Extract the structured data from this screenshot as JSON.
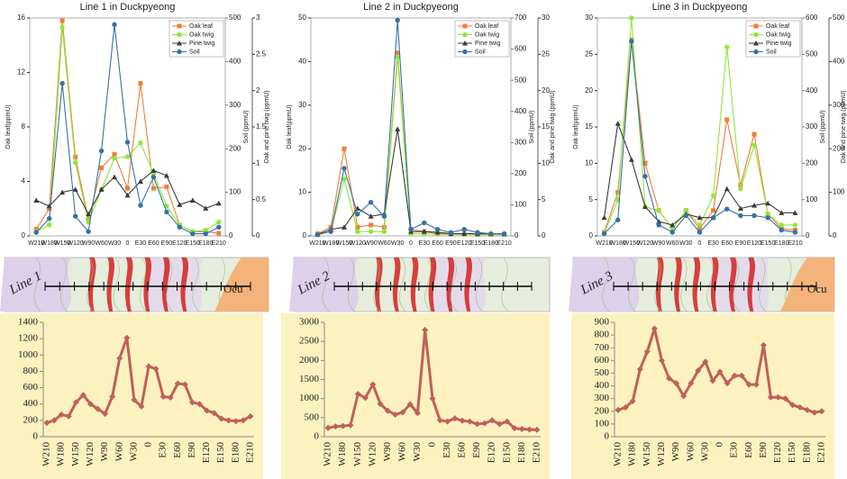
{
  "chart_data": [
    {
      "type": "line",
      "title": "Line 1 in Duckpyeong",
      "categories": [
        "W210",
        "W180",
        "W150",
        "W120",
        "W90",
        "W60",
        "W30",
        "0",
        "E30",
        "E60",
        "E90",
        "E120",
        "E150",
        "E180",
        "E210"
      ],
      "ylabel": "Oak leaf(ppmU)",
      "y2label": "Soil (ppmU)",
      "y3label": "Oak and pine twig (ppmU)",
      "ylim": [
        0,
        16
      ],
      "yticks": [
        0,
        4,
        8,
        12,
        16
      ],
      "y2lim": [
        0,
        500
      ],
      "y2ticks": [
        0,
        100,
        200,
        300,
        400,
        500
      ],
      "y3lim": [
        0,
        3
      ],
      "y3ticks": [
        0,
        0.5,
        1,
        1.5,
        2,
        2.5,
        3
      ],
      "legend": "upper right",
      "series": [
        {
          "name": "Oak leaf",
          "color": "#f07d3c",
          "marker": "square",
          "axis": "y",
          "values": [
            0.5,
            2,
            15.8,
            5.8,
            1.2,
            5,
            6,
            3.5,
            11.2,
            3.5,
            3.6,
            0.8,
            0.3,
            0.3,
            0.2
          ]
        },
        {
          "name": "Oak twig",
          "color": "#8ee83a",
          "marker": "circle",
          "axis": "y3",
          "values": [
            0.06,
            0.15,
            2.87,
            1.01,
            0.19,
            0.64,
            1.07,
            1.09,
            1.28,
            0.86,
            0.41,
            0.15,
            0.06,
            0.08,
            0.19
          ]
        },
        {
          "name": "Pine twig",
          "color": "#3a3a3a",
          "marker": "triangle",
          "axis": "y3",
          "values": [
            0.49,
            0.41,
            0.6,
            0.64,
            0.3,
            0.64,
            0.81,
            0.56,
            0.75,
            0.9,
            0.83,
            0.43,
            0.49,
            0.38,
            0.45
          ]
        },
        {
          "name": "Soil",
          "color": "#3572a8",
          "marker": "circle",
          "axis": "y2",
          "values": [
            8,
            40,
            350,
            45,
            10,
            195,
            485,
            215,
            70,
            135,
            55,
            20,
            5,
            5,
            20
          ]
        }
      ]
    },
    {
      "type": "line",
      "title": "Line 2 in Duckpyeong",
      "categories": [
        "W210",
        "W180",
        "W150",
        "W120",
        "W90",
        "W60",
        "W30",
        "0",
        "E30",
        "E60",
        "E90",
        "E120",
        "E150",
        "E180",
        "E210"
      ],
      "ylabel": "Oak leaf(ppmU)",
      "y2label": "Soil (ppmU)",
      "y3label": "Oak and pine twig (ppmU)",
      "ylim": [
        0,
        50
      ],
      "yticks": [
        0,
        10,
        20,
        30,
        40,
        50
      ],
      "y2lim": [
        0,
        700
      ],
      "y2ticks": [
        0,
        100,
        200,
        300,
        400,
        500,
        600,
        700
      ],
      "y3lim": [
        0,
        30
      ],
      "y3ticks": [
        0,
        5,
        10,
        15,
        20,
        25,
        30
      ],
      "legend": "upper right",
      "series": [
        {
          "name": "Oak leaf",
          "color": "#f07d3c",
          "marker": "square",
          "axis": "y",
          "values": [
            0.5,
            2,
            20,
            2,
            2.5,
            2,
            42,
            1.5,
            1,
            0.5,
            0.5,
            0.5,
            0.3,
            0.3,
            0.3
          ]
        },
        {
          "name": "Oak twig",
          "color": "#8ee83a",
          "marker": "circle",
          "axis": "y3",
          "values": [
            0.2,
            0.6,
            7.8,
            0.6,
            0.6,
            0.6,
            24.6,
            0.3,
            0.3,
            0.2,
            0.2,
            0.2,
            0.2,
            0.2,
            0.2
          ]
        },
        {
          "name": "Pine twig",
          "color": "#3a3a3a",
          "marker": "triangle",
          "axis": "y3",
          "values": [
            0.2,
            0.9,
            1.2,
            3.8,
            2.7,
            3,
            14.7,
            0.6,
            0.6,
            0.5,
            0.3,
            0.3,
            0.3,
            0.3,
            0.3
          ]
        },
        {
          "name": "Soil",
          "color": "#3572a8",
          "marker": "circle",
          "axis": "y2",
          "values": [
            4,
            14,
            217,
            70,
            108,
            63,
            693,
            21,
            42,
            21,
            11,
            21,
            11,
            7,
            7
          ]
        }
      ]
    },
    {
      "type": "line",
      "title": "Line 3 in Duckpyeong",
      "categories": [
        "W210",
        "W180",
        "W150",
        "W120",
        "W90",
        "W60",
        "W30",
        "0",
        "E30",
        "E60",
        "E90",
        "E120",
        "E150",
        "E180",
        "E210"
      ],
      "ylabel": "Oak leaf(ppmU)",
      "y2label": "Soil (ppmU)",
      "y3label": "Oak and pine twig (ppmU)",
      "ylim": [
        0,
        30
      ],
      "yticks": [
        0,
        5,
        10,
        15,
        20,
        25,
        30
      ],
      "y2lim": [
        0,
        600
      ],
      "y2ticks": [
        0,
        100,
        200,
        300,
        400,
        500,
        600
      ],
      "y3lim": [
        0,
        500
      ],
      "y3ticks": [
        0,
        100,
        200,
        300,
        400,
        500
      ],
      "legend": "upper right",
      "series": [
        {
          "name": "Oak leaf",
          "color": "#f07d3c",
          "marker": "square",
          "axis": "y",
          "values": [
            0.5,
            6,
            27,
            10,
            3.5,
            1,
            3.5,
            1,
            3.5,
            16,
            7,
            14,
            3,
            1,
            0.8
          ]
        },
        {
          "name": "Oak twig",
          "color": "#8ee83a",
          "marker": "circle",
          "axis": "y3",
          "values": [
            5,
            83,
            500,
            67,
            58,
            17,
            58,
            25,
            92,
            433,
            108,
            208,
            50,
            25,
            25
          ]
        },
        {
          "name": "Pine twig",
          "color": "#3a3a3a",
          "marker": "triangle",
          "axis": "y3",
          "values": [
            42,
            258,
            175,
            67,
            33,
            25,
            50,
            42,
            42,
            108,
            63,
            70,
            75,
            53,
            53
          ]
        },
        {
          "name": "Soil",
          "color": "#3572a8",
          "marker": "circle",
          "axis": "y2",
          "values": [
            6,
            44,
            536,
            164,
            30,
            10,
            56,
            10,
            50,
            74,
            56,
            56,
            50,
            16,
            10
          ]
        }
      ]
    },
    {
      "type": "line",
      "color": "#c0605a",
      "background": "#fcf2c0",
      "categories": [
        "W210",
        null,
        "W180",
        null,
        "W150",
        null,
        "W120",
        null,
        "W90",
        null,
        "W60",
        null,
        "W30",
        null,
        "0",
        null,
        "E30",
        null,
        "E60",
        null,
        "E90",
        null,
        "E120",
        null,
        "E150",
        null,
        "E180",
        null,
        "E210"
      ],
      "values": [
        170,
        200,
        270,
        250,
        420,
        510,
        400,
        340,
        280,
        490,
        960,
        1210,
        450,
        370,
        860,
        830,
        490,
        480,
        650,
        640,
        420,
        400,
        320,
        290,
        220,
        200,
        190,
        200,
        250
      ],
      "ylim": [
        0,
        1400
      ],
      "yticks": [
        0,
        200,
        400,
        600,
        800,
        1000,
        1200,
        1400
      ]
    },
    {
      "type": "line",
      "color": "#c0605a",
      "background": "#fcf2c0",
      "categories": [
        "W210",
        null,
        "W180",
        null,
        "W150",
        null,
        "W120",
        null,
        "W90",
        null,
        "W60",
        null,
        "W30",
        null,
        "0",
        null,
        "E30",
        null,
        "E60",
        null,
        "E90",
        null,
        "E120",
        null,
        "E150",
        null,
        "E180",
        null,
        "E210"
      ],
      "values": [
        230,
        270,
        280,
        300,
        1120,
        1020,
        1370,
        860,
        680,
        580,
        640,
        850,
        620,
        2800,
        1000,
        430,
        400,
        480,
        420,
        400,
        330,
        350,
        430,
        330,
        400,
        220,
        200,
        190,
        180
      ],
      "ylim": [
        0,
        3000
      ],
      "yticks": [
        0,
        500,
        1000,
        1500,
        2000,
        2500,
        3000
      ]
    },
    {
      "type": "line",
      "color": "#c0605a",
      "background": "#fcf2c0",
      "categories": [
        "W210",
        null,
        "W180",
        null,
        "W150",
        null,
        "W120",
        null,
        "W90",
        null,
        "W60",
        null,
        "W30",
        null,
        "0",
        null,
        "E30",
        null,
        "E60",
        null,
        "E90",
        null,
        "E120",
        null,
        "E150",
        null,
        "E180",
        null,
        "E210"
      ],
      "values": [
        210,
        230,
        280,
        530,
        670,
        850,
        600,
        460,
        420,
        320,
        420,
        520,
        590,
        440,
        510,
        420,
        480,
        480,
        410,
        410,
        720,
        310,
        310,
        300,
        250,
        230,
        210,
        190,
        200
      ],
      "ylim": [
        0,
        900
      ],
      "yticks": [
        0,
        100,
        200,
        300,
        400,
        500,
        600,
        700,
        800,
        900
      ]
    }
  ],
  "maps": [
    {
      "labels": [
        "Line 1",
        "Ocu"
      ]
    },
    {
      "labels": [
        "Line 2"
      ]
    },
    {
      "labels": [
        "Line 3",
        "Ocu"
      ]
    }
  ]
}
